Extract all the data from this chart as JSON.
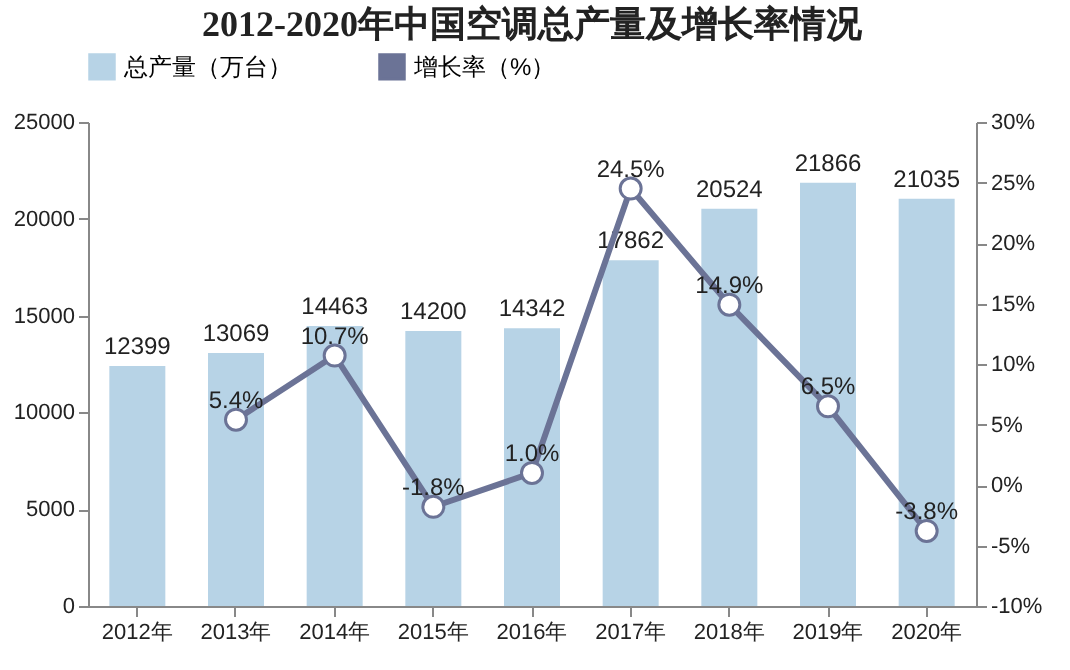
{
  "chart_data": {
    "type": "bar",
    "title": "2012-2020年中国空调总产量及增长率情况",
    "categories": [
      "2012年",
      "2013年",
      "2014年",
      "2015年",
      "2016年",
      "2017年",
      "2018年",
      "2019年",
      "2020年"
    ],
    "series": [
      {
        "name": "总产量（万台）",
        "color": "#b7d3e6",
        "values": [
          12399,
          13069,
          14463,
          14200,
          14342,
          17862,
          20524,
          21866,
          21035
        ]
      },
      {
        "name": "增长率（%）",
        "type": "line",
        "axis": "y2",
        "color": "#6b7396",
        "marker": "circle",
        "line_style": "solid",
        "values": [
          null,
          5.4,
          10.7,
          -1.8,
          1.0,
          24.5,
          14.9,
          6.5,
          -3.8
        ],
        "value_labels": [
          null,
          "5.4%",
          "10.7%",
          "-1.8%",
          "1.0%",
          "24.5%",
          "14.9%",
          "6.5%",
          "-3.8%"
        ]
      }
    ],
    "data_labels": true,
    "ylim": [
      0,
      25000
    ],
    "yticks": [
      0,
      5000,
      10000,
      15000,
      20000,
      25000
    ],
    "y2lim": [
      -10,
      30
    ],
    "y2ticks": [
      {
        "value": -10,
        "label": "-10%"
      },
      {
        "value": -5,
        "label": "-5%"
      },
      {
        "value": 0,
        "label": "0%"
      },
      {
        "value": 5,
        "label": "5%"
      },
      {
        "value": 10,
        "label": "10%"
      },
      {
        "value": 15,
        "label": "15%"
      },
      {
        "value": 20,
        "label": "20%"
      },
      {
        "value": 25,
        "label": "25%"
      },
      {
        "value": 30,
        "label": "30%"
      }
    ],
    "grid": false,
    "legend": "top"
  }
}
